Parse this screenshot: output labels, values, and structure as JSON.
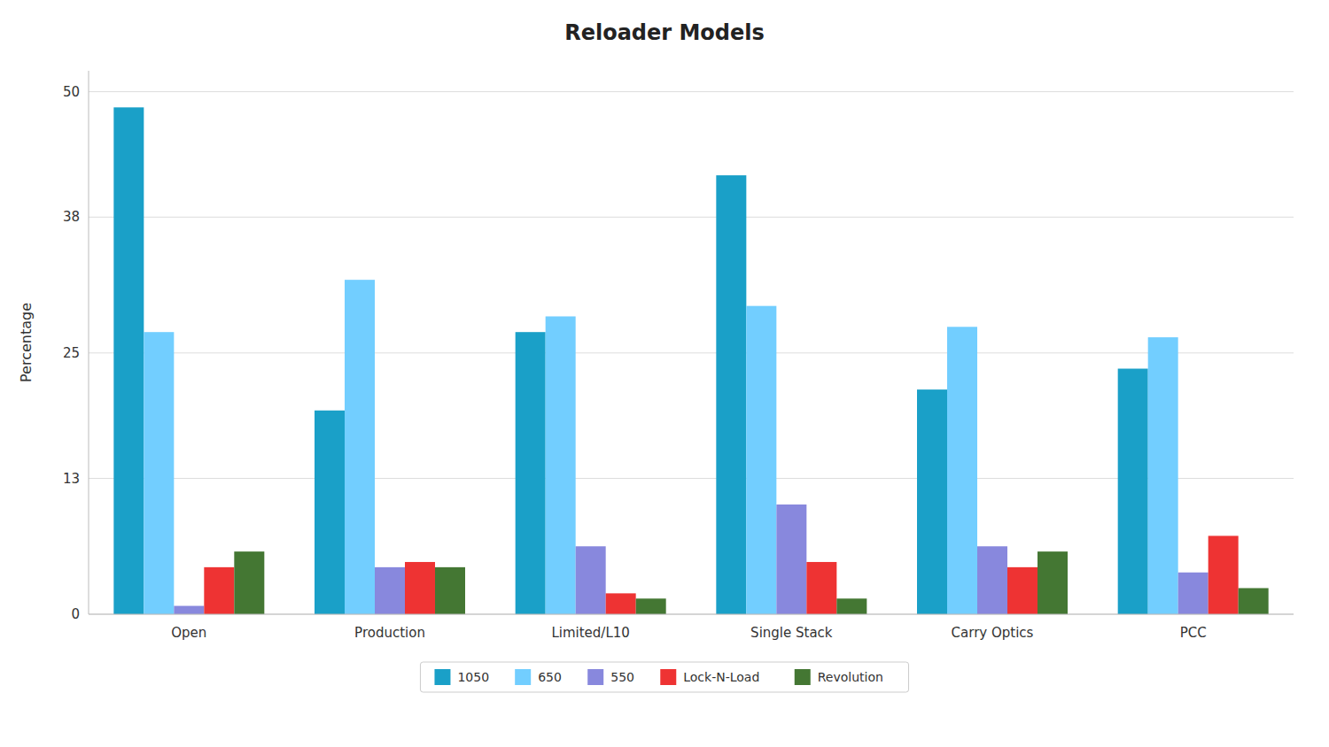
{
  "chart_data": {
    "type": "bar",
    "title": "Reloader Models",
    "categories": [
      "Open",
      "Production",
      "Limited/L10",
      "Single Stack",
      "Carry Optics",
      "PCC"
    ],
    "series": [
      {
        "name": "1050",
        "color": "#1AA0C8",
        "values": [
          48.5,
          19.5,
          27.0,
          42.0,
          21.5,
          23.5
        ]
      },
      {
        "name": "650",
        "color": "#72CEFF",
        "values": [
          27.0,
          32.0,
          28.5,
          29.5,
          27.5,
          26.5
        ]
      },
      {
        "name": "550",
        "color": "#8888DD",
        "values": [
          0.8,
          4.5,
          6.5,
          10.5,
          6.5,
          4.0
        ]
      },
      {
        "name": "Lock-N-Load",
        "color": "#EE3333",
        "values": [
          4.5,
          5.0,
          2.0,
          5.0,
          4.5,
          7.5
        ]
      },
      {
        "name": "Revolution",
        "color": "#447733",
        "values": [
          6.0,
          4.5,
          1.5,
          1.5,
          6.0,
          2.5
        ]
      }
    ],
    "ylabel": "Percentage",
    "ylim": [
      0,
      52
    ],
    "yticks": [
      0,
      13,
      25,
      38,
      50
    ],
    "grid": true,
    "legend": "bottom"
  }
}
